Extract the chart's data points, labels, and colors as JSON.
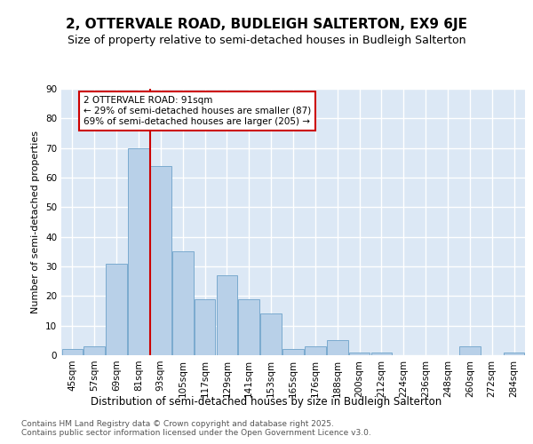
{
  "title": "2, OTTERVALE ROAD, BUDLEIGH SALTERTON, EX9 6JE",
  "subtitle": "Size of property relative to semi-detached houses in Budleigh Salterton",
  "xlabel": "Distribution of semi-detached houses by size in Budleigh Salterton",
  "ylabel": "Number of semi-detached properties",
  "categories": [
    "45sqm",
    "57sqm",
    "69sqm",
    "81sqm",
    "93sqm",
    "105sqm",
    "117sqm",
    "129sqm",
    "141sqm",
    "153sqm",
    "165sqm",
    "176sqm",
    "188sqm",
    "200sqm",
    "212sqm",
    "224sqm",
    "236sqm",
    "248sqm",
    "260sqm",
    "272sqm",
    "284sqm"
  ],
  "values": [
    2,
    3,
    31,
    70,
    64,
    35,
    19,
    27,
    19,
    14,
    2,
    3,
    5,
    1,
    1,
    0,
    0,
    0,
    3,
    0,
    1
  ],
  "bar_color": "#b8d0e8",
  "bar_edge_color": "#7aaacf",
  "vline_bar_index": 4,
  "vline_color": "#cc0000",
  "annotation_line1": "2 OTTERVALE ROAD: 91sqm",
  "annotation_line2": "← 29% of semi-detached houses are smaller (87)",
  "annotation_line3": "69% of semi-detached houses are larger (205) →",
  "annotation_box_color": "#cc0000",
  "ylim": [
    0,
    90
  ],
  "yticks": [
    0,
    10,
    20,
    30,
    40,
    50,
    60,
    70,
    80,
    90
  ],
  "background_color": "#dce8f5",
  "footer": "Contains HM Land Registry data © Crown copyright and database right 2025.\nContains public sector information licensed under the Open Government Licence v3.0.",
  "title_fontsize": 11,
  "subtitle_fontsize": 9,
  "xlabel_fontsize": 8.5,
  "ylabel_fontsize": 8,
  "tick_fontsize": 7.5,
  "footer_fontsize": 6.5
}
